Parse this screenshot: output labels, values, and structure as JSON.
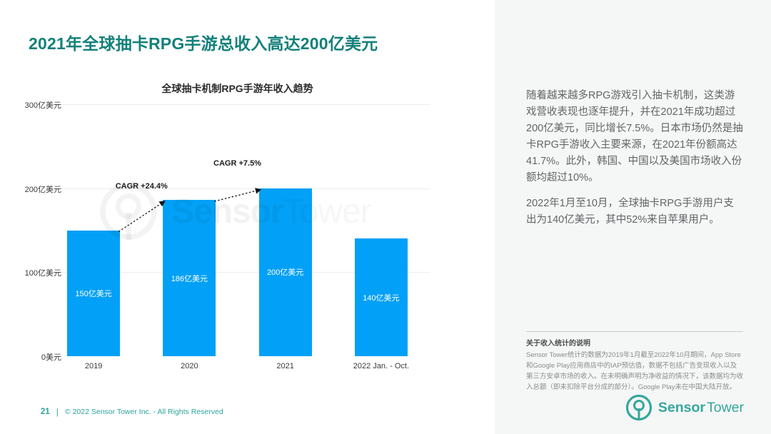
{
  "colors": {
    "brand_teal": "#13817A",
    "footer_teal": "#2CA49B",
    "logo_teal": "#35A79C",
    "bar_blue": "#02A0F6",
    "panel_bg": "#F5F6F6"
  },
  "header": {
    "title": "2021年全球抽卡RPG手游总收入高达200亿美元"
  },
  "chart_data": {
    "type": "bar",
    "title": "全球抽卡机制RPG手游年收入趋势",
    "categories": [
      "2019",
      "2020",
      "2021",
      "2022 Jan. - Oct."
    ],
    "values": [
      150,
      186,
      200,
      140
    ],
    "bar_labels": [
      "150亿美元",
      "186亿美元",
      "200亿美元",
      "140亿美元"
    ],
    "unit": "亿美元",
    "ylim": [
      0,
      300
    ],
    "y_ticks": [
      {
        "value": 300,
        "label": "300亿美元"
      },
      {
        "value": 200,
        "label": "200亿美元"
      },
      {
        "value": 100,
        "label": "100亿美元"
      },
      {
        "value": 0,
        "label": "0美元"
      }
    ],
    "grid": "horizontal-dotted",
    "legend": "none",
    "bar_color": "#02A0F6",
    "annotations": [
      {
        "label": "CAGR +24.4%",
        "from_index": 0,
        "to_index": 1
      },
      {
        "label": "CAGR +7.5%",
        "from_index": 1,
        "to_index": 2
      }
    ],
    "watermark": {
      "bold_part": "Sensor",
      "light_part": "Tower"
    }
  },
  "right_panel": {
    "paragraphs": [
      "随着越来越多RPG游戏引入抽卡机制，这类游戏营收表现也逐年提升，并在2021年成功超过200亿美元，同比增长7.5%。日本市场仍然是抽卡RPG手游收入主要来源，在2021年份额高达41.7%。此外，韩国、中国以及美国市场收入份额均超过10%。",
      "2022年1月至10月，全球抽卡RPG手游用户支出为140亿美元，其中52%来自苹果用户。"
    ],
    "footnote": {
      "title": "关于收入统计的说明",
      "body": "Sensor Tower统计的数据为2019年1月截至2022年10月期间，App Store和Google Play应用商店中的IAP预估值，数据不包括广告变现收入以及第三方安卓市场的收入。在未明确声明为净收益的情况下，该数据均为收入总额（即未扣除平台分成的部分）。Google Play未在中国大陆开放。"
    }
  },
  "footer": {
    "page_number": "21",
    "separator": "|",
    "copyright": "© 2022 Sensor Tower Inc. - All Rights Reserved"
  },
  "logo": {
    "bold_part": "Sensor",
    "light_part": "Tower"
  }
}
